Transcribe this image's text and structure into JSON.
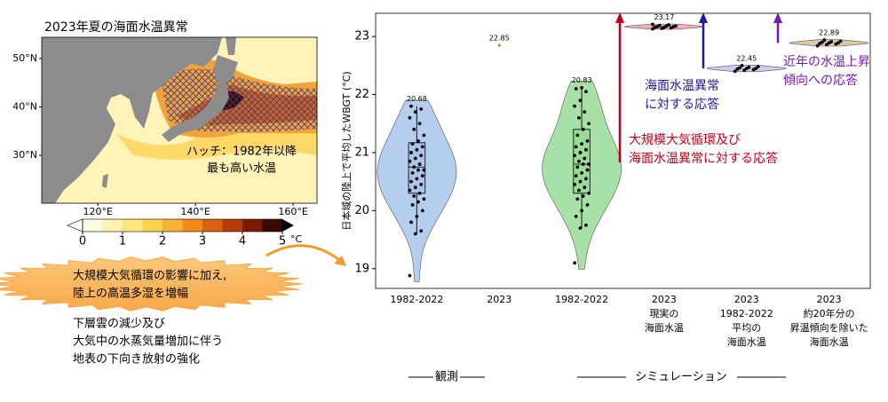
{
  "map": {
    "title": "2023年夏の海面水温異常",
    "xlim": [
      108.5,
      164.9
    ],
    "ylim": [
      20.1,
      54.4
    ],
    "lat_ticks": [
      {
        "value": 50,
        "label": "50°N"
      },
      {
        "value": 40,
        "label": "40°N"
      },
      {
        "value": 30,
        "label": "30°N"
      }
    ],
    "lon_ticks": [
      {
        "value": 120,
        "label": "120°E"
      },
      {
        "value": 140,
        "label": "140°E"
      },
      {
        "value": 160,
        "label": "160°E"
      }
    ],
    "hatch_note": [
      "ハッチ：1982年以降",
      "最も高い水温"
    ],
    "colorbar": {
      "lim": [
        0,
        5
      ],
      "ticks": [
        0,
        1,
        2,
        3,
        4,
        5
      ],
      "unit": "°C",
      "colors": [
        "#fffbe0",
        "#fff2b0",
        "#ffe680",
        "#ffd24d",
        "#f9b233",
        "#ef8a1a",
        "#d9600c",
        "#b33a0a",
        "#7a1a05",
        "#3a0a02"
      ]
    }
  },
  "callouts": {
    "burst": [
      "大規模大気循環の影響に加え,",
      "陸上の高温多湿を増幅"
    ],
    "note": [
      "下層雲の減少及び",
      "大気中の水蒸気量増加に伴う",
      "地表の下向き放射の強化"
    ]
  },
  "chart_data": {
    "type": "violin",
    "ylabel": "日本域の陸上で平均したWBGT (°C)",
    "ylim": [
      18.66,
      23.4
    ],
    "yticks": [
      19,
      20,
      21,
      22,
      23
    ],
    "categories": [
      [
        "1982-2022"
      ],
      [
        "2023"
      ],
      [
        "1982-2022"
      ],
      [
        "2023",
        "現実の",
        "海面水温"
      ],
      [
        "2023",
        "1982-2022",
        "平均の",
        "海面水温"
      ],
      [
        "2023",
        "約20年分の",
        "昇温傾向を除いた",
        "海面水温"
      ]
    ],
    "values": [
      20.68,
      22.85,
      20.83,
      23.17,
      22.45,
      22.89
    ],
    "colors": [
      "#a9c6ea",
      "#e8742a",
      "#98dc98",
      "#f2a3a8",
      "#c3c3f2",
      "#d8bc9a"
    ],
    "points": [
      [
        18.88,
        19.6,
        19.65,
        19.8,
        19.9,
        20.0,
        20.1,
        20.15,
        20.2,
        20.25,
        20.3,
        20.35,
        20.4,
        20.45,
        20.5,
        20.55,
        20.6,
        20.65,
        20.7,
        20.7,
        20.75,
        20.8,
        20.85,
        20.9,
        20.95,
        21.0,
        21.05,
        21.1,
        21.15,
        21.2,
        21.3,
        21.4,
        21.5,
        21.6,
        21.7,
        21.75,
        21.8
      ],
      [
        22.85
      ],
      [
        19.1,
        19.7,
        19.75,
        19.9,
        20.0,
        20.1,
        20.2,
        20.25,
        20.3,
        20.35,
        20.4,
        20.45,
        20.5,
        20.55,
        20.6,
        20.65,
        20.7,
        20.75,
        20.8,
        20.8,
        20.85,
        20.9,
        20.95,
        21.0,
        21.05,
        21.1,
        21.15,
        21.2,
        21.3,
        21.4,
        21.5,
        21.6,
        21.7,
        21.8,
        21.9,
        22.05,
        22.1,
        22.12
      ],
      [
        23.13,
        23.14,
        23.15,
        23.16,
        23.16,
        23.17,
        23.17,
        23.18,
        23.18,
        23.19,
        23.2,
        23.21
      ],
      [
        22.4,
        22.42,
        22.43,
        22.44,
        22.45,
        22.45,
        22.46,
        22.47,
        22.48,
        22.5
      ],
      [
        22.84,
        22.86,
        22.87,
        22.88,
        22.89,
        22.89,
        22.9,
        22.91,
        22.92,
        22.94
      ]
    ],
    "boxes": {
      "0": [
        19.6,
        20.3,
        20.75,
        21.17,
        21.8
      ],
      "2": [
        19.7,
        20.3,
        20.8,
        21.4,
        22.12
      ]
    },
    "annotations": [
      {
        "text": [
          "大規模大気循環及び",
          "海面水温異常に対する応答"
        ],
        "color": "#c0001a"
      },
      {
        "text": [
          "海面水温異常",
          "に対する応答"
        ],
        "color": "#1a1aa0"
      },
      {
        "text": [
          "近年の水温上昇",
          "傾向への応答"
        ],
        "color": "#7a1ab0"
      }
    ],
    "group_labels": [
      "観測",
      "シミュレーション"
    ]
  }
}
